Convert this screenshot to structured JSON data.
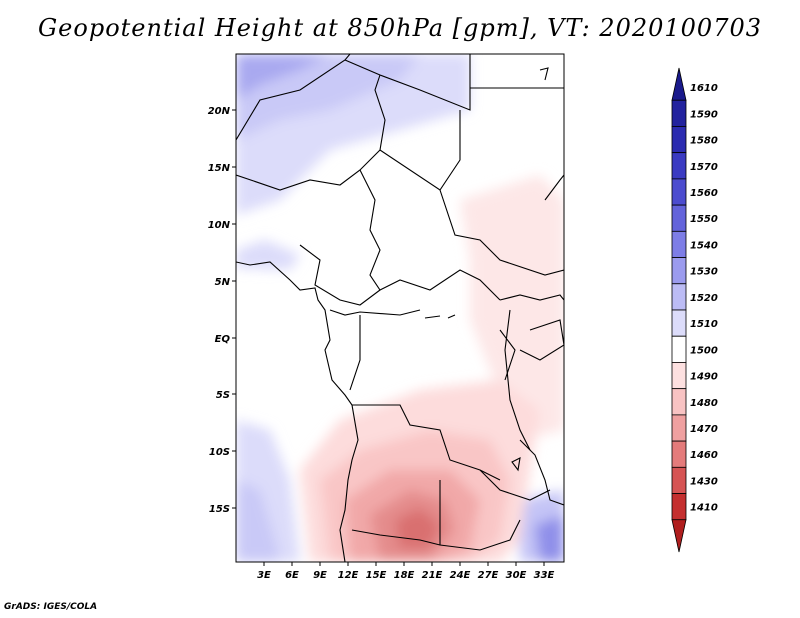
{
  "title": "Geopotential Height at 850hPa [gpm], VT: 2020100703",
  "credit": "GrADS: IGES/COLA",
  "lat_labels": [
    "20N",
    "15N",
    "10N",
    "5N",
    "EQ",
    "5S",
    "10S",
    "15S"
  ],
  "lon_labels": [
    "3E",
    "6E",
    "9E",
    "12E",
    "15E",
    "18E",
    "21E",
    "24E",
    "27E",
    "30E",
    "33E"
  ],
  "legend": {
    "levels": [
      "1610",
      "1590",
      "1580",
      "1570",
      "1560",
      "1550",
      "1540",
      "1530",
      "1520",
      "1510",
      "1500",
      "1490",
      "1480",
      "1470",
      "1460",
      "1430",
      "1410"
    ],
    "colors": [
      "#1a1a8c",
      "#22229e",
      "#2b2bb0",
      "#3a3ac2",
      "#4c4ccf",
      "#6363db",
      "#7d7de6",
      "#9b9bee",
      "#bcbcf5",
      "#dcdcfa",
      "#ffffff",
      "#fde0e0",
      "#f8c3c3",
      "#efa0a0",
      "#e47b7b",
      "#d65454",
      "#c42f2f",
      "#b01e1e"
    ]
  }
}
